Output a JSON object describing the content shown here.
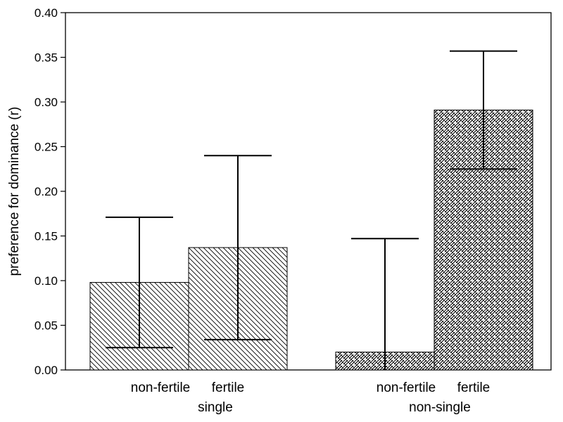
{
  "chart_data": {
    "type": "bar",
    "ylabel": "preference for dominance (r)",
    "ylim": [
      0,
      0.4
    ],
    "yticks": [
      "0.00",
      "0.05",
      "0.10",
      "0.15",
      "0.20",
      "0.25",
      "0.30",
      "0.35",
      "0.40"
    ],
    "groups": [
      {
        "label": "single",
        "bars": [
          {
            "label": "non-fertile",
            "value": 0.098,
            "err_low": 0.025,
            "err_high": 0.171,
            "pattern": "diag"
          },
          {
            "label": "fertile",
            "value": 0.137,
            "err_low": 0.034,
            "err_high": 0.24,
            "pattern": "diag"
          }
        ]
      },
      {
        "label": "non-single",
        "bars": [
          {
            "label": "non-fertile",
            "value": 0.02,
            "err_low": 0.0,
            "err_high": 0.147,
            "pattern": "weave"
          },
          {
            "label": "fertile",
            "value": 0.291,
            "err_low": 0.225,
            "err_high": 0.357,
            "pattern": "weave"
          }
        ]
      }
    ],
    "grid": false,
    "legend": "none"
  }
}
